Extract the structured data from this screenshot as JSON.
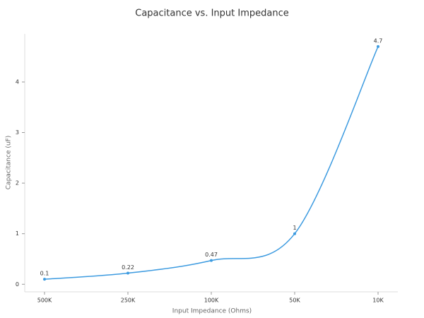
{
  "chart_data": {
    "type": "line",
    "title": "Capacitance vs. Input Impedance",
    "x_label": "Input Impedance (Ohms)",
    "y_label": "Capacitance (uF)",
    "categories": [
      "500K",
      "250K",
      "100K",
      "50K",
      "10K"
    ],
    "series": [
      {
        "name": "Capacitance",
        "color": "#3d9be0",
        "values": [
          0.1,
          0.22,
          0.47,
          1,
          4.7
        ]
      }
    ],
    "ylim": [
      -0.15,
      4.95
    ],
    "yticks": [
      0,
      1,
      2,
      3,
      4
    ],
    "grid": false,
    "smooth": true
  }
}
